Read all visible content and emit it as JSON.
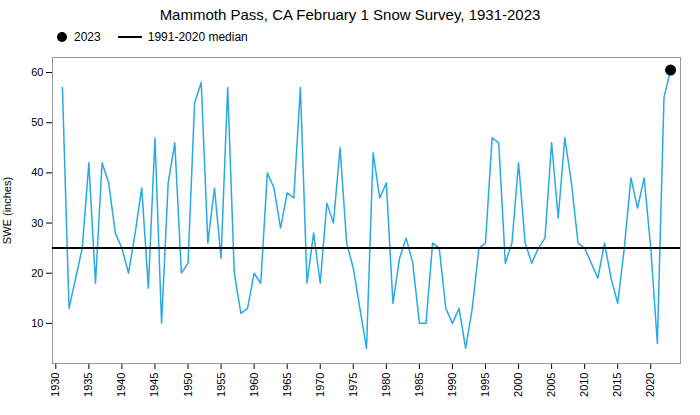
{
  "chart_data": {
    "type": "line",
    "title": "Mammoth Pass, CA February 1 Snow Survey, 1931-2023",
    "ylabel": "SWE (inches)",
    "color": "#29ABE2",
    "x": [
      1931,
      1932,
      1933,
      1934,
      1935,
      1936,
      1937,
      1938,
      1939,
      1940,
      1941,
      1942,
      1943,
      1944,
      1945,
      1946,
      1947,
      1948,
      1949,
      1950,
      1951,
      1952,
      1953,
      1954,
      1955,
      1956,
      1957,
      1958,
      1959,
      1960,
      1961,
      1962,
      1963,
      1964,
      1965,
      1966,
      1967,
      1968,
      1969,
      1970,
      1971,
      1972,
      1973,
      1974,
      1975,
      1976,
      1977,
      1978,
      1979,
      1980,
      1981,
      1982,
      1983,
      1984,
      1985,
      1986,
      1987,
      1988,
      1989,
      1990,
      1991,
      1992,
      1993,
      1994,
      1995,
      1996,
      1997,
      1998,
      1999,
      2000,
      2001,
      2002,
      2003,
      2004,
      2005,
      2006,
      2007,
      2008,
      2009,
      2010,
      2011,
      2012,
      2013,
      2014,
      2015,
      2016,
      2017,
      2018,
      2019,
      2020,
      2021,
      2022,
      2023
    ],
    "values": [
      57,
      13,
      19,
      25,
      42,
      18,
      42,
      38,
      28,
      25,
      20,
      28,
      37,
      17,
      47,
      10,
      38,
      46,
      20,
      22,
      54,
      58,
      26,
      37,
      23,
      57,
      20,
      12,
      13,
      20,
      18,
      40,
      37,
      29,
      36,
      35,
      57,
      18,
      28,
      18,
      34,
      30,
      45,
      26,
      21,
      13,
      5,
      44,
      35,
      38,
      14,
      23,
      27,
      22,
      10,
      10,
      26,
      25,
      13,
      10,
      13,
      5,
      13,
      25,
      26,
      47,
      46,
      22,
      26,
      42,
      26,
      22,
      25,
      27,
      46,
      31,
      47,
      38,
      26,
      25,
      22,
      19,
      26,
      19,
      14,
      25,
      39,
      33,
      39,
      25,
      6,
      55,
      60.5
    ],
    "median": {
      "value": 25.0,
      "label": "1991-2020 median",
      "color": "#000000"
    },
    "highlight": {
      "x": 2023,
      "value": 60.5,
      "label": "2023",
      "color": "#000000"
    },
    "xlim": [
      1929.5,
      2024.5
    ],
    "ylim": [
      2,
      63
    ],
    "xticks": [
      1930,
      1935,
      1940,
      1945,
      1950,
      1955,
      1960,
      1965,
      1970,
      1975,
      1980,
      1985,
      1990,
      1995,
      2000,
      2005,
      2010,
      2015,
      2020
    ],
    "yticks": [
      10,
      20,
      30,
      40,
      50,
      60
    ],
    "grid": false,
    "legend": "upper left"
  }
}
